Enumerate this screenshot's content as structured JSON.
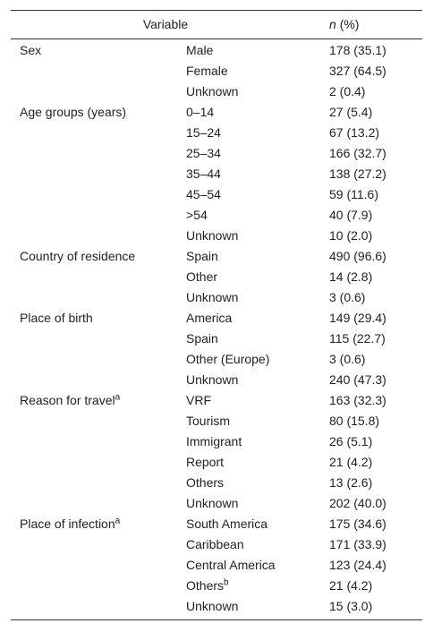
{
  "header": {
    "variable": "Variable",
    "n": "n",
    "pct": "(%)"
  },
  "groups": [
    {
      "label": "Sex",
      "rows": [
        {
          "category": "Male",
          "value": "178 (35.1)"
        },
        {
          "category": "Female",
          "value": "327 (64.5)"
        },
        {
          "category": "Unknown",
          "value": "2 (0.4)"
        }
      ]
    },
    {
      "label": "Age groups (years)",
      "rows": [
        {
          "category": "0–14",
          "value": "27 (5.4)"
        },
        {
          "category": "15–24",
          "value": "67 (13.2)"
        },
        {
          "category": "25–34",
          "value": "166 (32.7)"
        },
        {
          "category": "35–44",
          "value": "138 (27.2)"
        },
        {
          "category": "45–54",
          "value": "59 (11.6)"
        },
        {
          "category": ">54",
          "value": "40 (7.9)"
        },
        {
          "category": "Unknown",
          "value": "10 (2.0)"
        }
      ]
    },
    {
      "label": "Country of residence",
      "rows": [
        {
          "category": "Spain",
          "value": "490 (96.6)"
        },
        {
          "category": "Other",
          "value": "14 (2.8)"
        },
        {
          "category": "Unknown",
          "value": "3 (0.6)"
        }
      ]
    },
    {
      "label": "Place of birth",
      "rows": [
        {
          "category": "America",
          "value": "149 (29.4)"
        },
        {
          "category": "Spain",
          "value": "115 (22.7)"
        },
        {
          "category": "Other (Europe)",
          "value": "3 (0.6)"
        },
        {
          "category": "Unknown",
          "value": "240 (47.3)"
        }
      ]
    },
    {
      "label": "Reason for travel",
      "sup": "a",
      "rows": [
        {
          "category": "VRF",
          "value": "163 (32.3)"
        },
        {
          "category": "Tourism",
          "value": "80 (15.8)"
        },
        {
          "category": "Immigrant",
          "value": "26 (5.1)"
        },
        {
          "category": "Report",
          "value": "21 (4.2)"
        },
        {
          "category": "Others",
          "value": "13 (2.6)"
        },
        {
          "category": "Unknown",
          "value": "202 (40.0)"
        }
      ]
    },
    {
      "label": "Place of infection",
      "sup": "a",
      "rows": [
        {
          "category": "South America",
          "value": "175 (34.6)"
        },
        {
          "category": "Caribbean",
          "value": "171 (33.9)"
        },
        {
          "category": "Central America",
          "value": "123 (24.4)"
        },
        {
          "category": "Others",
          "sup": "b",
          "value": "21 (4.2)"
        },
        {
          "category": "Unknown",
          "value": "15 (3.0)"
        }
      ]
    }
  ]
}
